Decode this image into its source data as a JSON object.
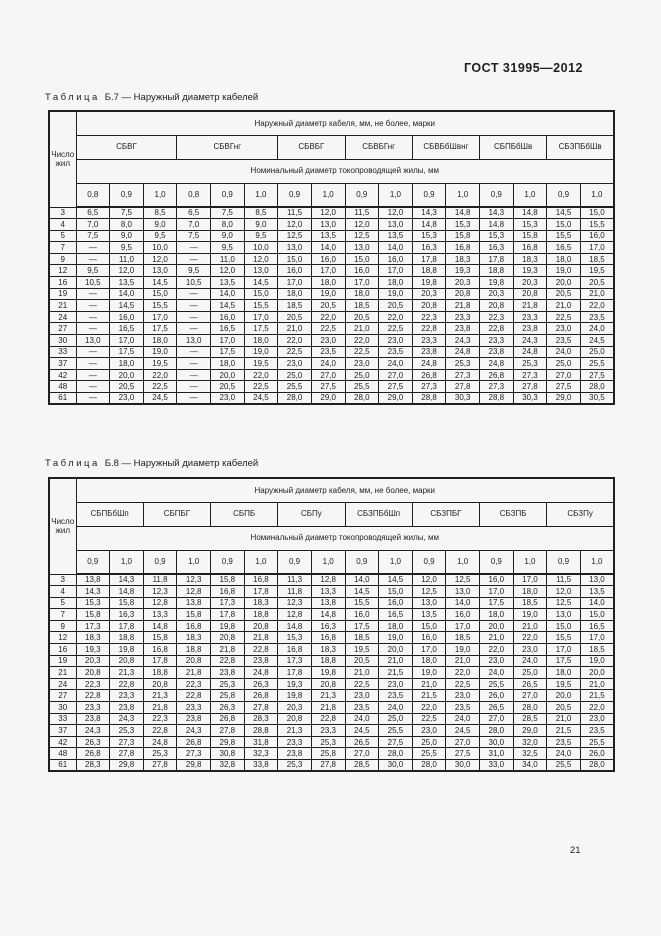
{
  "page": {
    "doc_code": "ГОСТ 31995—2012",
    "page_number": "21",
    "background_color": "#f6f6f6",
    "ink_color": "#1f1f1f"
  },
  "tables": [
    {
      "title_word": "Таблица",
      "title_rest": "Б.7 — Наружный диаметр кабелей",
      "row_header": "Число жил",
      "header_top": "Наружный диаметр кабеля, мм, не более, марки",
      "header_mid": "Номинальный диаметр токопроводящей жилы, мм",
      "brands": [
        {
          "name": "СБВГ",
          "cols": [
            "0,8",
            "0,9",
            "1,0"
          ]
        },
        {
          "name": "СБВГнг",
          "cols": [
            "0,8",
            "0,9",
            "1,0"
          ]
        },
        {
          "name": "СБВБГ",
          "cols": [
            "0,9",
            "1,0"
          ]
        },
        {
          "name": "СБВБГнг",
          "cols": [
            "0,9",
            "1,0"
          ]
        },
        {
          "name": "СБВБбШвнг",
          "cols": [
            "0,9",
            "1,0"
          ]
        },
        {
          "name": "СБПБбШв",
          "cols": [
            "0,9",
            "1,0"
          ]
        },
        {
          "name": "СБЗПБбШв",
          "cols": [
            "0,9",
            "1,0"
          ]
        }
      ],
      "rows": [
        {
          "cores": "3",
          "values": [
            "6,5",
            "7,5",
            "8,5",
            "6,5",
            "7,5",
            "8,5",
            "11,5",
            "12,0",
            "11,5",
            "12,0",
            "14,3",
            "14,8",
            "14,3",
            "14,8",
            "14,5",
            "15,0"
          ]
        },
        {
          "cores": "4",
          "values": [
            "7,0",
            "8,0",
            "9,0",
            "7,0",
            "8,0",
            "9,0",
            "12,0",
            "13,0",
            "12,0",
            "13,0",
            "14,8",
            "15,3",
            "14,8",
            "15,3",
            "15,0",
            "15,5"
          ]
        },
        {
          "cores": "5",
          "values": [
            "7,5",
            "9,0",
            "9,5",
            "7,5",
            "9,0",
            "9,5",
            "12,5",
            "13,5",
            "12,5",
            "13,5",
            "15,3",
            "15,8",
            "15,3",
            "15,8",
            "15,5",
            "16,0"
          ]
        },
        {
          "cores": "7",
          "values": [
            "—",
            "9,5",
            "10,0",
            "—",
            "9,5",
            "10,0",
            "13,0",
            "14,0",
            "13,0",
            "14,0",
            "16,3",
            "16,8",
            "16,3",
            "16,8",
            "16,5",
            "17,0"
          ]
        },
        {
          "cores": "9",
          "values": [
            "—",
            "11,0",
            "12,0",
            "—",
            "11,0",
            "12,0",
            "15,0",
            "16,0",
            "15,0",
            "16,0",
            "17,8",
            "18,3",
            "17,8",
            "18,3",
            "18,0",
            "18,5"
          ]
        },
        {
          "cores": "12",
          "values": [
            "9,5",
            "12,0",
            "13,0",
            "9,5",
            "12,0",
            "13,0",
            "16,0",
            "17,0",
            "16,0",
            "17,0",
            "18,8",
            "19,3",
            "18,8",
            "19,3",
            "19,0",
            "19,5"
          ]
        },
        {
          "cores": "16",
          "values": [
            "10,5",
            "13,5",
            "14,5",
            "10,5",
            "13,5",
            "14,5",
            "17,0",
            "18,0",
            "17,0",
            "18,0",
            "19,8",
            "20,3",
            "19,8",
            "20,3",
            "20,0",
            "20,5"
          ]
        },
        {
          "cores": "19",
          "values": [
            "—",
            "14,0",
            "15,0",
            "—",
            "14,0",
            "15,0",
            "18,0",
            "19,0",
            "18,0",
            "19,0",
            "20,3",
            "20,8",
            "20,3",
            "20,8",
            "20,5",
            "21,0"
          ]
        },
        {
          "cores": "21",
          "values": [
            "—",
            "14,5",
            "15,5",
            "—",
            "14,5",
            "15,5",
            "18,5",
            "20,5",
            "18,5",
            "20,5",
            "20,8",
            "21,8",
            "20,8",
            "21,8",
            "21,0",
            "22,0"
          ]
        },
        {
          "cores": "24",
          "values": [
            "—",
            "16,0",
            "17,0",
            "—",
            "16,0",
            "17,0",
            "20,5",
            "22,0",
            "20,5",
            "22,0",
            "22,3",
            "23,3",
            "22,3",
            "23,3",
            "22,5",
            "23,5"
          ]
        },
        {
          "cores": "27",
          "values": [
            "—",
            "16,5",
            "17,5",
            "—",
            "16,5",
            "17,5",
            "21,0",
            "22,5",
            "21,0",
            "22,5",
            "22,8",
            "23,8",
            "22,8",
            "23,8",
            "23,0",
            "24,0"
          ]
        },
        {
          "cores": "30",
          "values": [
            "13,0",
            "17,0",
            "18,0",
            "13,0",
            "17,0",
            "18,0",
            "22,0",
            "23,0",
            "22,0",
            "23,0",
            "23,3",
            "24,3",
            "23,3",
            "24,3",
            "23,5",
            "24,5"
          ]
        },
        {
          "cores": "33",
          "values": [
            "—",
            "17,5",
            "19,0",
            "—",
            "17,5",
            "19,0",
            "22,5",
            "23,5",
            "22,5",
            "23,5",
            "23,8",
            "24,8",
            "23,8",
            "24,8",
            "24,0",
            "25,0"
          ]
        },
        {
          "cores": "37",
          "values": [
            "—",
            "18,0",
            "19,5",
            "—",
            "18,0",
            "19,5",
            "23,0",
            "24,0",
            "23,0",
            "24,0",
            "24,8",
            "25,3",
            "24,8",
            "25,3",
            "25,0",
            "25,5"
          ]
        },
        {
          "cores": "42",
          "values": [
            "—",
            "20,0",
            "22,0",
            "—",
            "20,0",
            "22,0",
            "25,0",
            "27,0",
            "25,0",
            "27,0",
            "26,8",
            "27,3",
            "26,8",
            "27,3",
            "27,0",
            "27,5"
          ]
        },
        {
          "cores": "48",
          "values": [
            "—",
            "20,5",
            "22,5",
            "—",
            "20,5",
            "22,5",
            "25,5",
            "27,5",
            "25,5",
            "27,5",
            "27,3",
            "27,8",
            "27,3",
            "27,8",
            "27,5",
            "28,0"
          ]
        },
        {
          "cores": "61",
          "values": [
            "—",
            "23,0",
            "24,5",
            "—",
            "23,0",
            "24,5",
            "28,0",
            "29,0",
            "28,0",
            "29,0",
            "28,8",
            "30,3",
            "28,8",
            "30,3",
            "29,0",
            "30,5"
          ]
        }
      ]
    },
    {
      "title_word": "Таблица",
      "title_rest": "Б.8 — Наружный диаметр кабелей",
      "row_header": "Число жил",
      "header_top": "Наружный диаметр кабеля, мм, не более, марки",
      "header_mid": "Номинальный диаметр токопроводящей жилы, мм",
      "brands": [
        {
          "name": "СБПБбШп",
          "cols": [
            "0,9",
            "1,0"
          ]
        },
        {
          "name": "СБПБГ",
          "cols": [
            "0,9",
            "1,0"
          ]
        },
        {
          "name": "СБПБ",
          "cols": [
            "0,9",
            "1,0"
          ]
        },
        {
          "name": "СБПу",
          "cols": [
            "0,9",
            "1,0"
          ]
        },
        {
          "name": "СБЗПБбШп",
          "cols": [
            "0,9",
            "1,0"
          ]
        },
        {
          "name": "СБЗПБГ",
          "cols": [
            "0,9",
            "1,0"
          ]
        },
        {
          "name": "СБЗПБ",
          "cols": [
            "0,9",
            "1,0"
          ]
        },
        {
          "name": "СБЗПу",
          "cols": [
            "0,9",
            "1,0"
          ]
        }
      ],
      "rows": [
        {
          "cores": "3",
          "values": [
            "13,8",
            "14,3",
            "11,8",
            "12,3",
            "15,8",
            "16,8",
            "11,3",
            "12,8",
            "14,0",
            "14,5",
            "12,0",
            "12,5",
            "16,0",
            "17,0",
            "11,5",
            "13,0"
          ]
        },
        {
          "cores": "4",
          "values": [
            "14,3",
            "14,8",
            "12,3",
            "12,8",
            "16,8",
            "17,8",
            "11,8",
            "13,3",
            "14,5",
            "15,0",
            "12,5",
            "13,0",
            "17,0",
            "18,0",
            "12,0",
            "13,5"
          ]
        },
        {
          "cores": "5",
          "values": [
            "15,3",
            "15,8",
            "12,8",
            "13,8",
            "17,3",
            "18,3",
            "12,3",
            "13,8",
            "15,5",
            "16,0",
            "13,0",
            "14,0",
            "17,5",
            "18,5",
            "12,5",
            "14,0"
          ]
        },
        {
          "cores": "7",
          "values": [
            "15,8",
            "16,3",
            "13,3",
            "15,8",
            "17,8",
            "18,8",
            "12,8",
            "14,8",
            "16,0",
            "16,5",
            "13,5",
            "16,0",
            "18,0",
            "19,0",
            "13,0",
            "15,0"
          ]
        },
        {
          "cores": "9",
          "values": [
            "17,3",
            "17,8",
            "14,8",
            "16,8",
            "19,8",
            "20,8",
            "14,8",
            "16,3",
            "17,5",
            "18,0",
            "15,0",
            "17,0",
            "20,0",
            "21,0",
            "15,0",
            "16,5"
          ]
        },
        {
          "cores": "12",
          "values": [
            "18,3",
            "18,8",
            "15,8",
            "18,3",
            "20,8",
            "21,8",
            "15,3",
            "16,8",
            "18,5",
            "19,0",
            "16,0",
            "18,5",
            "21,0",
            "22,0",
            "15,5",
            "17,0"
          ]
        },
        {
          "cores": "16",
          "values": [
            "19,3",
            "19,8",
            "16,8",
            "18,8",
            "21,8",
            "22,8",
            "16,8",
            "18,3",
            "19,5",
            "20,0",
            "17,0",
            "19,0",
            "22,0",
            "23,0",
            "17,0",
            "18,5"
          ]
        },
        {
          "cores": "19",
          "values": [
            "20,3",
            "20,8",
            "17,8",
            "20,8",
            "22,8",
            "23,8",
            "17,3",
            "18,8",
            "20,5",
            "21,0",
            "18,0",
            "21,0",
            "23,0",
            "24,0",
            "17,5",
            "19,0"
          ]
        },
        {
          "cores": "21",
          "values": [
            "20,8",
            "21,3",
            "18,8",
            "21,8",
            "23,8",
            "24,8",
            "17,8",
            "19,8",
            "21,0",
            "21,5",
            "19,0",
            "22,0",
            "24,0",
            "25,0",
            "18,0",
            "20,0"
          ]
        },
        {
          "cores": "24",
          "values": [
            "22,3",
            "22,8",
            "20,8",
            "22,3",
            "25,3",
            "26,3",
            "19,3",
            "20,8",
            "22,5",
            "23,0",
            "21,0",
            "22,5",
            "25,5",
            "26,5",
            "19,5",
            "21,0"
          ]
        },
        {
          "cores": "27",
          "values": [
            "22,8",
            "23,3",
            "21,3",
            "22,8",
            "25,8",
            "26,8",
            "19,8",
            "21,3",
            "23,0",
            "23,5",
            "21,5",
            "23,0",
            "26,0",
            "27,0",
            "20,0",
            "21,5"
          ]
        },
        {
          "cores": "30",
          "values": [
            "23,3",
            "23,8",
            "21,8",
            "23,3",
            "26,3",
            "27,8",
            "20,3",
            "21,8",
            "23,5",
            "24,0",
            "22,0",
            "23,5",
            "26,5",
            "28,0",
            "20,5",
            "22,0"
          ]
        },
        {
          "cores": "33",
          "values": [
            "23,8",
            "24,3",
            "22,3",
            "23,8",
            "26,8",
            "28,3",
            "20,8",
            "22,8",
            "24,0",
            "25,0",
            "22,5",
            "24,0",
            "27,0",
            "28,5",
            "21,0",
            "23,0"
          ]
        },
        {
          "cores": "37",
          "values": [
            "24,3",
            "25,3",
            "22,8",
            "24,3",
            "27,8",
            "28,8",
            "21,3",
            "23,3",
            "24,5",
            "25,5",
            "23,0",
            "24,5",
            "28,0",
            "29,0",
            "21,5",
            "23,5"
          ]
        },
        {
          "cores": "42",
          "values": [
            "26,3",
            "27,3",
            "24,8",
            "26,8",
            "29,8",
            "31,8",
            "23,3",
            "25,3",
            "26,5",
            "27,5",
            "25,0",
            "27,0",
            "30,0",
            "32,0",
            "23,5",
            "25,5"
          ]
        },
        {
          "cores": "48",
          "values": [
            "26,8",
            "27,8",
            "25,3",
            "27,3",
            "30,8",
            "32,3",
            "23,8",
            "25,8",
            "27,0",
            "28,0",
            "25,5",
            "27,5",
            "31,0",
            "32,5",
            "24,0",
            "26,0"
          ]
        },
        {
          "cores": "61",
          "values": [
            "28,3",
            "29,8",
            "27,8",
            "29,8",
            "32,8",
            "33,8",
            "25,3",
            "27,8",
            "28,5",
            "30,0",
            "28,0",
            "30,0",
            "33,0",
            "34,0",
            "25,5",
            "28,0"
          ]
        }
      ]
    }
  ]
}
